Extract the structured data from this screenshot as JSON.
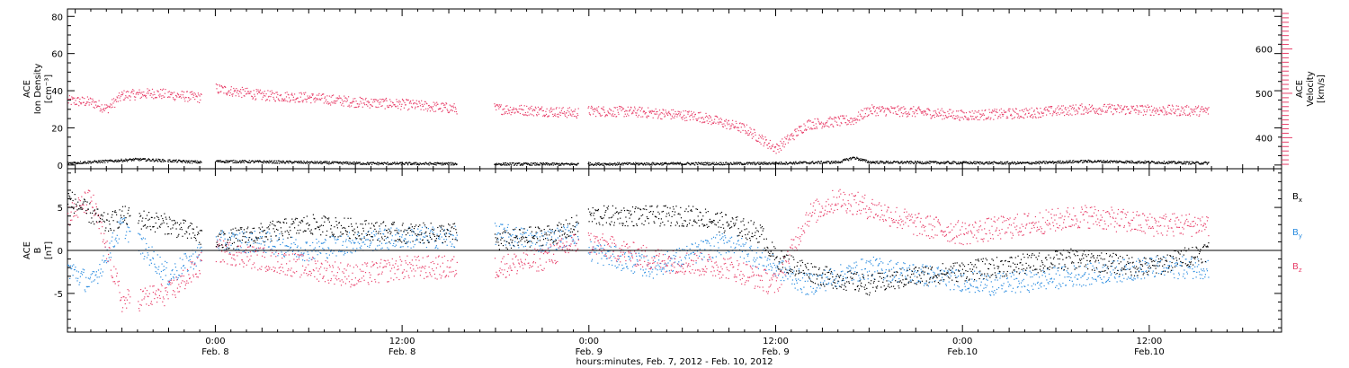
{
  "chart_data": [
    {
      "type": "scatter",
      "panel": "top",
      "xlabel": "hours:minutes, Feb.  7, 2012 - Feb. 10, 2012",
      "x_ticks": [
        {
          "hours": 0,
          "time": "0:00",
          "date": "Feb. 8"
        },
        {
          "hours": 12,
          "time": "12:00",
          "date": "Feb. 8"
        },
        {
          "hours": 24,
          "time": "0:00",
          "date": "Feb. 9"
        },
        {
          "hours": 36,
          "time": "12:00",
          "date": "Feb. 9"
        },
        {
          "hours": 48,
          "time": "0:00",
          "date": "Feb.10"
        },
        {
          "hours": 60,
          "time": "12:00",
          "date": "Feb.10"
        }
      ],
      "xlim_hours": [
        -9.5,
        68.5
      ],
      "left_axis": {
        "label_lines": [
          "ACE",
          "Ion Density",
          "[cm⁻³]"
        ],
        "ylim": [
          -2,
          84
        ],
        "ticks": [
          "0",
          "20",
          "40",
          "60",
          "80"
        ],
        "tick_values": [
          0,
          20,
          40,
          60,
          80
        ]
      },
      "right_axis": {
        "label_lines": [
          "ACE",
          "Velocity",
          "[km/s]"
        ],
        "color": "#e8416b",
        "ylim": [
          330,
          690
        ],
        "ticks": [
          "400",
          "500",
          "600"
        ],
        "tick_values": [
          400,
          500,
          600
        ]
      },
      "series": [
        {
          "name": "",
          "axis": "right",
          "color": "#e8416b",
          "data_gaps_hours": [
            [
              -3.2,
              -3.1
            ],
            [
              -0.9,
              0.0
            ],
            [
              15.5,
              17.9
            ],
            [
              23.3,
              23.9
            ]
          ],
          "key_points_hours": [
            -9.5,
            -8,
            -7,
            -6,
            -4,
            -1,
            0,
            1,
            3,
            6,
            9,
            12,
            15.5,
            17.9,
            21,
            23.3,
            23.9,
            27,
            31,
            34,
            36,
            38,
            41,
            42,
            45,
            48,
            52,
            56,
            60,
            63.8
          ],
          "key_points_values": [
            483,
            480,
            465,
            495,
            500,
            490,
            510,
            505,
            495,
            490,
            480,
            475,
            465,
            465,
            460,
            455,
            460,
            458,
            448,
            420,
            375,
            430,
            440,
            462,
            458,
            450,
            455,
            465,
            462,
            460
          ]
        },
        {
          "name": "",
          "axis": "left",
          "color": "#000000",
          "data_gaps_hours": [
            [
              -3.2,
              -3.1
            ],
            [
              -0.9,
              0.0
            ],
            [
              15.5,
              17.9
            ],
            [
              23.3,
              23.9
            ]
          ],
          "key_points_hours": [
            -9.5,
            -7,
            -5,
            -1,
            0,
            5,
            10,
            15.5,
            17.9,
            23.3,
            23.9,
            35,
            40,
            41,
            42,
            52,
            56,
            63.8
          ],
          "key_points_values": [
            1,
            2,
            3,
            1.5,
            2,
            1.5,
            0.8,
            0.6,
            0.5,
            0.4,
            0.5,
            0.8,
            1.5,
            4,
            1.5,
            1,
            2,
            1
          ]
        }
      ]
    },
    {
      "type": "scatter",
      "panel": "bottom",
      "left_axis": {
        "label_lines": [
          "ACE",
          "B",
          "[nT]"
        ],
        "ylim": [
          -9.5,
          9.5
        ],
        "ticks": [
          "-5",
          "0",
          "5"
        ],
        "tick_values": [
          -5,
          0,
          5
        ]
      },
      "zero_line": true,
      "series": [
        {
          "name": "Bx",
          "legend_text": "B",
          "legend_sub": "x",
          "color": "#000000",
          "data_gaps_hours": [
            [
              -5.5,
              -5.0
            ],
            [
              -0.9,
              0.0
            ],
            [
              15.5,
              17.9
            ],
            [
              23.3,
              23.9
            ]
          ],
          "key_points_hours": [
            -9.5,
            -7,
            -6,
            -3,
            0,
            3,
            6,
            9,
            12,
            15.5,
            17.9,
            22,
            23.3,
            23.9,
            27,
            31,
            35,
            36,
            39,
            42,
            45,
            50,
            55,
            60,
            63.8
          ],
          "key_points_values": [
            6,
            3,
            4,
            3,
            1,
            2,
            3,
            2.5,
            2,
            2,
            1,
            2,
            3,
            4,
            4,
            4,
            2,
            -1,
            -3,
            -4,
            -3,
            -2,
            -1,
            -2,
            0
          ]
        },
        {
          "name": "By",
          "legend_text": "B",
          "legend_sub": "y",
          "color": "#2a8ce0",
          "data_gaps_hours": [
            [
              -5.5,
              -5.0
            ],
            [
              -0.9,
              0.0
            ],
            [
              15.5,
              17.9
            ],
            [
              23.3,
              23.9
            ]
          ],
          "key_points_hours": [
            -9.5,
            -8,
            -6,
            -3,
            0,
            3,
            6,
            9,
            12,
            15.5,
            17.9,
            21,
            23.3,
            23.9,
            28,
            33,
            36,
            38,
            42,
            46,
            50,
            55,
            60,
            63.8
          ],
          "key_points_values": [
            -2,
            -4,
            3,
            -3,
            1,
            1,
            0,
            1,
            1.5,
            1.5,
            2,
            1,
            2,
            0,
            -2,
            1,
            -2,
            -4,
            -2,
            -3,
            -4,
            -3,
            -2,
            -2
          ]
        },
        {
          "name": "Bz",
          "legend_text": "B",
          "legend_sub": "z",
          "color": "#e8416b",
          "data_gaps_hours": [
            [
              -5.5,
              -5.0
            ],
            [
              -0.9,
              0.0
            ],
            [
              15.5,
              17.9
            ],
            [
              23.3,
              23.9
            ]
          ],
          "key_points_hours": [
            -9.5,
            -8,
            -6,
            -3,
            0,
            3,
            6,
            9,
            12,
            15.5,
            17.9,
            21,
            23.3,
            23.9,
            28,
            33,
            36,
            38,
            40,
            42,
            45,
            48,
            52,
            56,
            60,
            63.8
          ],
          "key_points_values": [
            4,
            6,
            -6,
            -5,
            0,
            -1,
            -2,
            -3,
            -2,
            -2,
            -2,
            -1,
            1,
            1,
            -1,
            -2,
            -4,
            4,
            6,
            5,
            3,
            2,
            3,
            4,
            3,
            3
          ]
        }
      ]
    }
  ]
}
